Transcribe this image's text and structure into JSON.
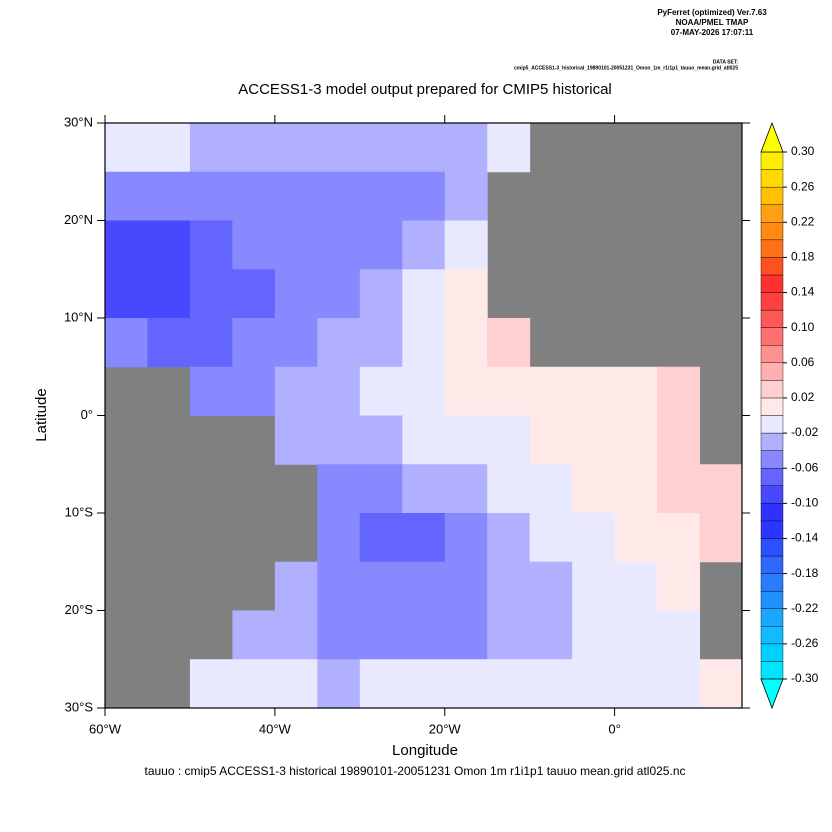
{
  "header": {
    "software": "PyFerret (optimized) Ver.7.63",
    "org": "NOAA/PMEL TMAP",
    "timestamp": "07-MAY-2026 17:07:11",
    "dataset_label": "DATA SET:",
    "dataset": "cmip5_ACCESS1-3_historical_19890101-20051231_Omon_1m_r1i1p1_tauuo_mean.grid_atl025"
  },
  "chart_data": {
    "type": "map",
    "title": "ACCESS1-3 model output prepared for CMIP5 historical",
    "x_label": "Longitude",
    "y_label": "Latitude",
    "footer": "tauuo : cmip5 ACCESS1-3 historical 19890101-20051231 Omon 1m r1i1p1 tauuo mean.grid atl025.nc",
    "xlim": [
      -60,
      15
    ],
    "ylim": [
      -30,
      30
    ],
    "xticks": [
      {
        "value": -60,
        "label": "60°W"
      },
      {
        "value": -40,
        "label": "40°W"
      },
      {
        "value": -20,
        "label": "20°W"
      },
      {
        "value": 0,
        "label": "0°"
      }
    ],
    "yticks": [
      {
        "value": -30,
        "label": "30°S"
      },
      {
        "value": -20,
        "label": "20°S"
      },
      {
        "value": -10,
        "label": "10°S"
      },
      {
        "value": 0,
        "label": "0°"
      },
      {
        "value": 10,
        "label": "10°N"
      },
      {
        "value": 20,
        "label": "20°N"
      },
      {
        "value": 30,
        "label": "30°N"
      }
    ],
    "land_color": "#808080",
    "x": [
      -57.5,
      -52.5,
      -47.5,
      -42.5,
      -37.5,
      -32.5,
      -27.5,
      -22.5,
      -17.5,
      -12.5,
      -7.5,
      -2.5,
      2.5,
      7.5,
      12.5
    ],
    "y": [
      27.5,
      22.5,
      17.5,
      12.5,
      7.5,
      2.5,
      -2.5,
      -7.5,
      -12.5,
      -17.5,
      -22.5,
      -27.5
    ],
    "z": [
      [
        -0.015,
        -0.02,
        -0.03,
        -0.03,
        -0.03,
        -0.03,
        -0.03,
        -0.04,
        -0.03,
        -0.02,
        null,
        null,
        null,
        null,
        null
      ],
      [
        -0.05,
        -0.05,
        -0.05,
        -0.05,
        -0.05,
        -0.05,
        -0.06,
        -0.05,
        -0.03,
        null,
        null,
        null,
        null,
        null,
        null
      ],
      [
        -0.09,
        -0.09,
        -0.08,
        -0.06,
        -0.06,
        -0.06,
        -0.05,
        -0.04,
        -0.02,
        null,
        null,
        null,
        null,
        null,
        null
      ],
      [
        -0.09,
        -0.09,
        -0.08,
        -0.07,
        -0.06,
        -0.05,
        -0.04,
        -0.02,
        0.01,
        null,
        null,
        null,
        null,
        null,
        null
      ],
      [
        -0.06,
        -0.07,
        -0.07,
        -0.06,
        -0.05,
        -0.04,
        -0.03,
        -0.01,
        0.01,
        0.02,
        null,
        null,
        null,
        null,
        null
      ],
      [
        null,
        null,
        -0.05,
        -0.05,
        -0.04,
        -0.03,
        -0.02,
        -0.01,
        0.005,
        0.01,
        0.01,
        0.01,
        0.01,
        0.02,
        null
      ],
      [
        null,
        null,
        null,
        null,
        -0.04,
        -0.04,
        -0.03,
        -0.02,
        -0.015,
        -0.01,
        0.005,
        0.01,
        0.01,
        0.02,
        null
      ],
      [
        null,
        null,
        null,
        null,
        null,
        -0.05,
        -0.05,
        -0.04,
        -0.03,
        -0.02,
        -0.01,
        0.005,
        0.01,
        0.02,
        0.02
      ],
      [
        null,
        null,
        null,
        null,
        null,
        -0.05,
        -0.07,
        -0.08,
        -0.06,
        -0.04,
        -0.02,
        -0.01,
        0.005,
        0.01,
        0.02
      ],
      [
        null,
        null,
        null,
        null,
        -0.03,
        -0.05,
        -0.06,
        -0.06,
        -0.05,
        -0.04,
        -0.03,
        -0.02,
        -0.01,
        0.005,
        null
      ],
      [
        null,
        null,
        null,
        -0.03,
        -0.04,
        -0.05,
        -0.05,
        -0.05,
        -0.05,
        -0.04,
        -0.03,
        -0.02,
        -0.02,
        -0.01,
        null
      ],
      [
        null,
        null,
        -0.02,
        -0.02,
        -0.02,
        -0.03,
        -0.02,
        -0.01,
        -0.01,
        -0.015,
        -0.02,
        -0.02,
        -0.02,
        -0.01,
        0.005
      ]
    ],
    "levels": [
      -0.3,
      -0.28,
      -0.26,
      -0.24,
      -0.22,
      -0.2,
      -0.18,
      -0.16,
      -0.14,
      -0.12,
      -0.1,
      -0.08,
      -0.06,
      -0.04,
      -0.02,
      0,
      0.02,
      0.04,
      0.06,
      0.08,
      0.1,
      0.12,
      0.14,
      0.16,
      0.18,
      0.2,
      0.22,
      0.24,
      0.26,
      0.28,
      0.3
    ],
    "colors": [
      "#00e5ff",
      "#00d0ff",
      "#10bcff",
      "#1aa8ff",
      "#2090ff",
      "#2a7cff",
      "#2e68ff",
      "#2a50ff",
      "#2a38ff",
      "#3030ff",
      "#4848ff",
      "#6464ff",
      "#8888ff",
      "#b0b0ff",
      "#e8e8ff",
      "#ffe8e8",
      "#ffd0d0",
      "#ffb0b0",
      "#ff9090",
      "#ff7070",
      "#ff5858",
      "#ff4040",
      "#ff3030",
      "#ff5020",
      "#ff7018",
      "#ff8c10",
      "#ffa010",
      "#ffc000",
      "#ffd800",
      "#ffee00"
    ],
    "extend_colors": [
      "#00ffff",
      "#ffff00"
    ],
    "colorbar_ticks": [
      {
        "value": 0.3,
        "label": "0.30"
      },
      {
        "value": 0.26,
        "label": "0.26"
      },
      {
        "value": 0.22,
        "label": "0.22"
      },
      {
        "value": 0.18,
        "label": "0.18"
      },
      {
        "value": 0.14,
        "label": "0.14"
      },
      {
        "value": 0.1,
        "label": "0.10"
      },
      {
        "value": 0.06,
        "label": "0.06"
      },
      {
        "value": 0.02,
        "label": "0.02"
      },
      {
        "value": -0.02,
        "label": "-0.02"
      },
      {
        "value": -0.06,
        "label": "-0.06"
      },
      {
        "value": -0.1,
        "label": "-0.10"
      },
      {
        "value": -0.14,
        "label": "-0.14"
      },
      {
        "value": -0.18,
        "label": "-0.18"
      },
      {
        "value": -0.22,
        "label": "-0.22"
      },
      {
        "value": -0.26,
        "label": "-0.26"
      },
      {
        "value": -0.3,
        "label": "-0.30"
      }
    ]
  }
}
